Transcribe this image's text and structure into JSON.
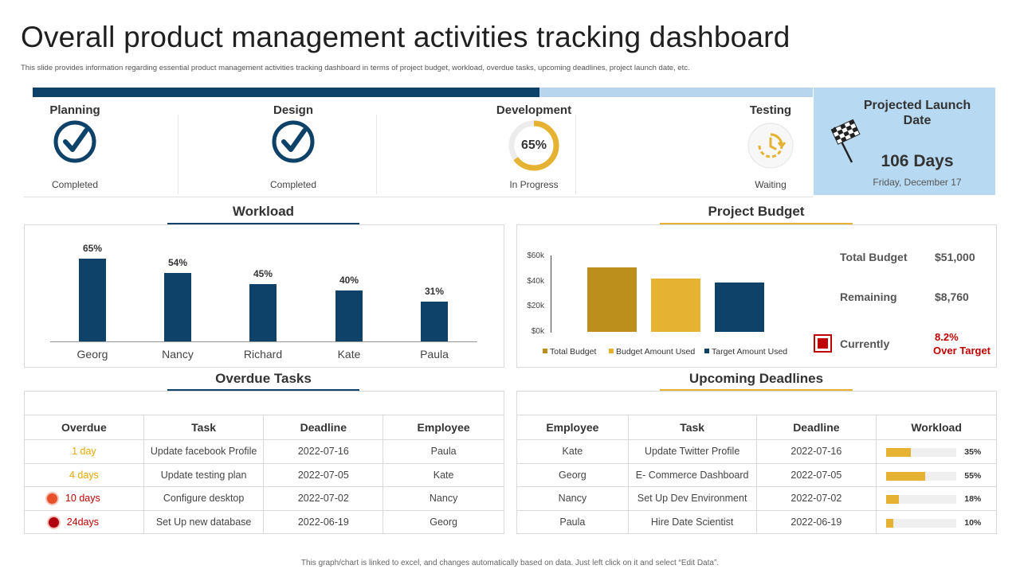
{
  "header": {
    "title": "Overall product management activities tracking dashboard",
    "subtitle": "This slide provides information regarding essential product management  activities tracking dashboard in terms of project budget, workload, overdue tasks, upcoming deadlines, project launch date, etc."
  },
  "stages": [
    {
      "label": "Planning",
      "status": "Completed",
      "icon": "check-circle-icon"
    },
    {
      "label": "Design",
      "status": "Completed",
      "icon": "check-circle-icon"
    },
    {
      "label": "Development",
      "status": "In Progress",
      "icon": "progress-ring-icon",
      "percent": "65%",
      "progress": 0.65
    },
    {
      "label": "Testing",
      "status": "Waiting",
      "icon": "clock-icon"
    }
  ],
  "launch": {
    "title": "Projected Launch Date",
    "days": "106 Days",
    "date": "Friday, December 17",
    "icon": "checkered-flag-icon"
  },
  "colors": {
    "navy": "#0e4269",
    "light_blue": "#b7d9f2",
    "gold": "#e5b232",
    "dark_gold": "#bc8f1c",
    "red": "#c00000"
  },
  "workload": {
    "title": "Workload",
    "chart_data": {
      "type": "bar",
      "categories": [
        "Georg",
        "Nancy",
        "Richard",
        "Kate",
        "Paula"
      ],
      "values": [
        65,
        54,
        45,
        40,
        31
      ],
      "labels": [
        "65%",
        "54%",
        "45%",
        "40%",
        "31%"
      ],
      "ylim": [
        0,
        100
      ]
    }
  },
  "budget": {
    "title": "Project Budget",
    "chart_data": {
      "type": "bar",
      "categories": [
        "Total Budget",
        "Budget Amount Used",
        "Target Amount Used"
      ],
      "values": [
        51000,
        42240,
        39000
      ],
      "colors": [
        "#bc8f1c",
        "#e5b232",
        "#0e4269"
      ],
      "ticks": [
        "$60k",
        "$40k",
        "$20k",
        "$0k"
      ],
      "ylim": [
        0,
        60000
      ]
    },
    "stats": {
      "total_label": "Total Budget",
      "total_value": "$51,000",
      "remaining_label": "Remaining",
      "remaining_value": "$8,760",
      "currently_label": "Currently",
      "currently_value": "8.2%",
      "currently_note": "Over Target"
    }
  },
  "overdue": {
    "title": "Overdue Tasks",
    "columns": [
      "Overdue",
      "Task",
      "Deadline",
      "Employee"
    ],
    "rows": [
      {
        "overdue": "1 day",
        "task": "Update facebook Profile",
        "deadline": "2022-07-16",
        "employee": "Paula",
        "color": "#e5a800",
        "dot": ""
      },
      {
        "overdue": "4 days",
        "task": "Update testing plan",
        "deadline": "2022-07-05",
        "employee": "Kate",
        "color": "#e5a800",
        "dot": ""
      },
      {
        "overdue": "10 days",
        "task": "Configure desktop",
        "deadline": "2022-07-02",
        "employee": "Nancy",
        "color": "#c00000",
        "dot": "#e8502a"
      },
      {
        "overdue": "24days",
        "task": "Set Up new database",
        "deadline": "2022-06-19",
        "employee": "Georg",
        "color": "#c00000",
        "dot": "#b00010"
      }
    ]
  },
  "deadlines": {
    "title": "Upcoming Deadlines",
    "columns": [
      "Employee",
      "Task",
      "Deadline",
      "Workload"
    ],
    "rows": [
      {
        "employee": "Kate",
        "task": "Update Twitter Profile",
        "deadline": "2022-07-16",
        "workload": "35%",
        "level": 0.35
      },
      {
        "employee": "Georg",
        "task": "E- Commerce Dashboard",
        "deadline": "2022-07-05",
        "workload": "55%",
        "level": 0.55
      },
      {
        "employee": "Nancy",
        "task": "Set Up Dev Environment",
        "deadline": "2022-07-02",
        "workload": "18%",
        "level": 0.18
      },
      {
        "employee": "Paula",
        "task": "Hire Date Scientist",
        "deadline": "2022-06-19",
        "workload": "10%",
        "level": 0.1
      }
    ]
  },
  "footer": "This graph/chart is linked to excel, and changes automatically based on data. Just left click on it and select “Edit Data”."
}
